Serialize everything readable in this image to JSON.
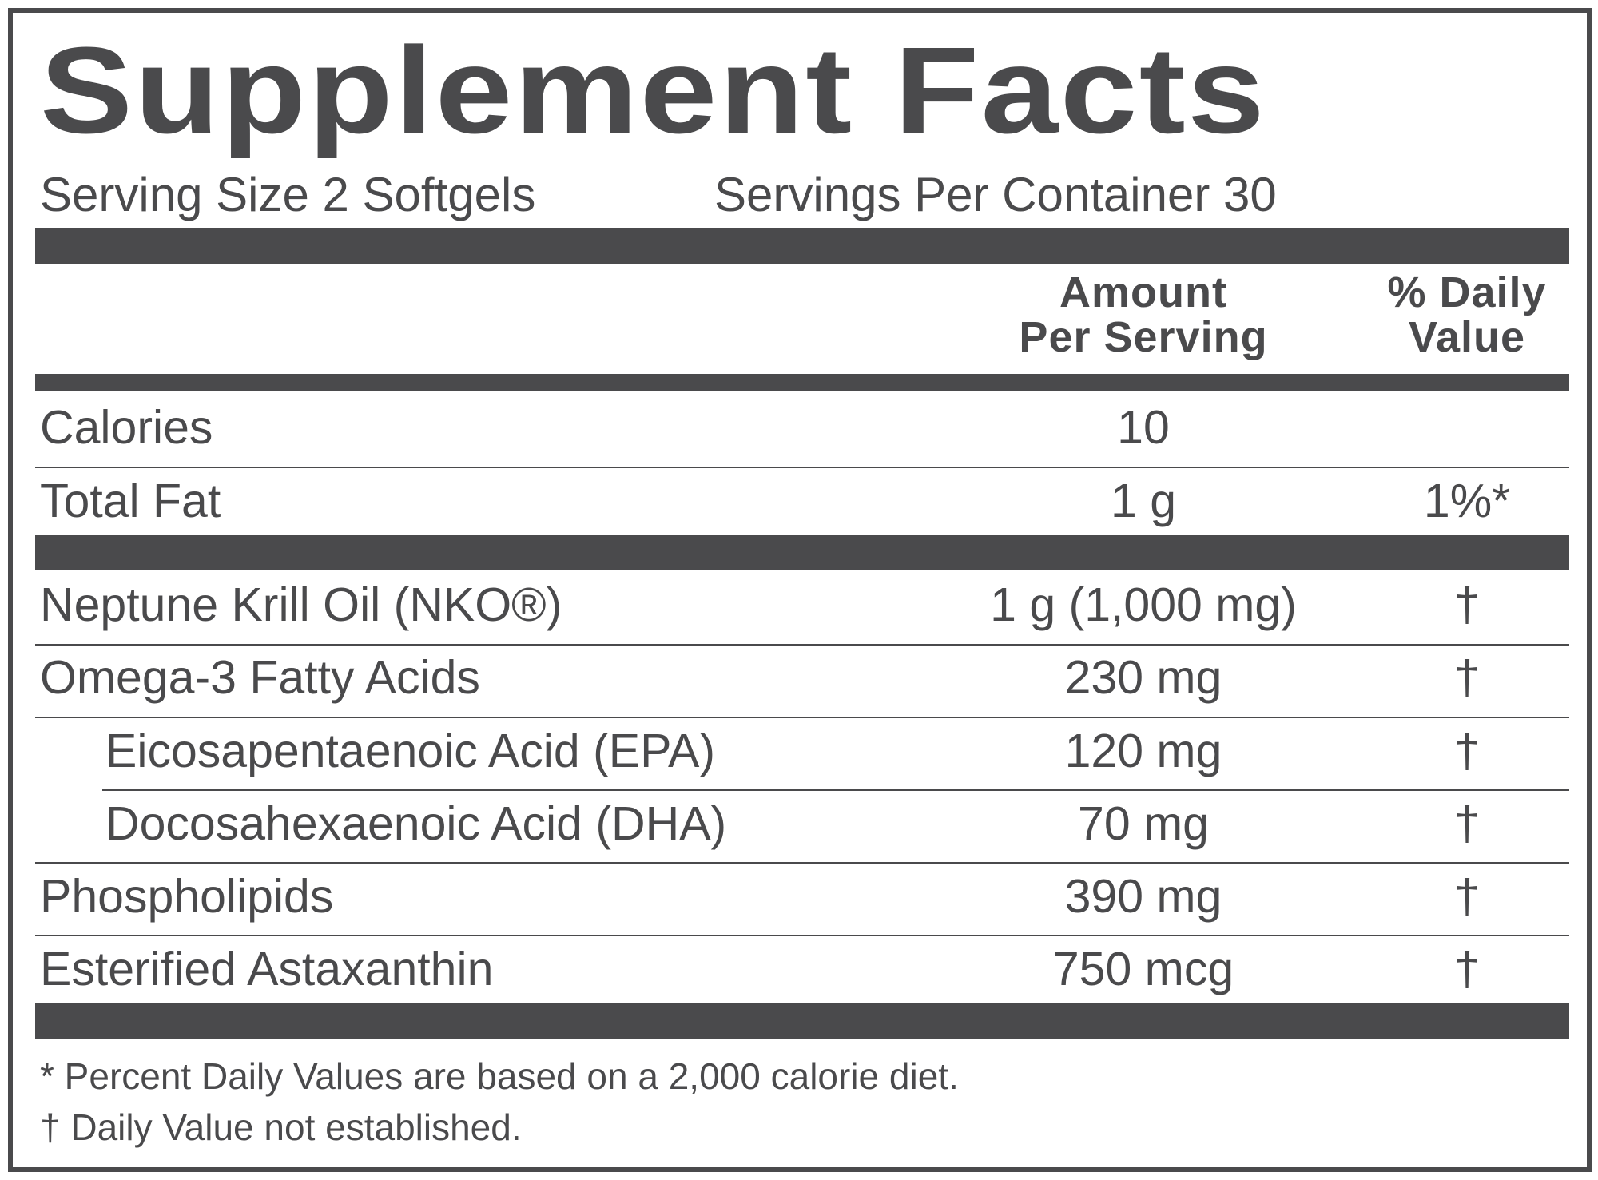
{
  "title": "Supplement Facts",
  "serving_size": "Serving Size 2 Softgels",
  "servings_per_container": "Servings Per Container 30",
  "columns": {
    "amount_line1": "Amount",
    "amount_line2": "Per Serving",
    "dv_line1": "% Daily",
    "dv_line2": "Value"
  },
  "rows_top": [
    {
      "label": "Calories",
      "amount": "10",
      "dv": ""
    },
    {
      "label": "Total Fat",
      "amount": "1 g",
      "dv": "1%*"
    }
  ],
  "rows_main": [
    {
      "label": "Neptune Krill Oil (NKO®)",
      "amount": "1 g (1,000 mg)",
      "dv": "†"
    },
    {
      "label": "Omega-3 Fatty Acids",
      "amount": "230 mg",
      "dv": "†"
    },
    {
      "label": "Eicosapentaenoic Acid (EPA)",
      "amount": "120 mg",
      "dv": "†"
    },
    {
      "label": "Docosahexaenoic Acid (DHA)",
      "amount": "70 mg",
      "dv": "†"
    },
    {
      "label": "Phospholipids",
      "amount": "390 mg",
      "dv": "†"
    },
    {
      "label": "Esterified Astaxanthin",
      "amount": "750 mcg",
      "dv": "†"
    }
  ],
  "footnotes": [
    "* Percent Daily Values are based on a 2,000 calorie diet.",
    "† Daily Value not established."
  ]
}
